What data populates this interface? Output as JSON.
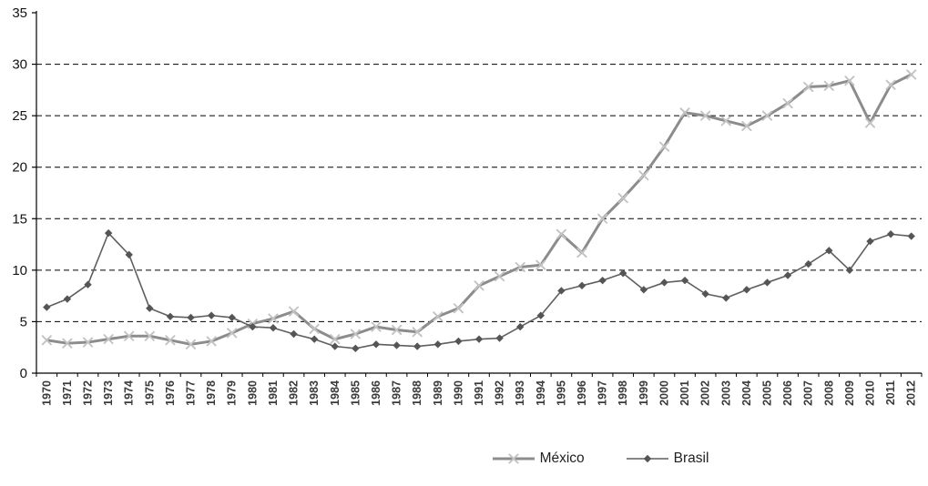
{
  "chart_data": {
    "type": "line",
    "title": "",
    "xlabel": "",
    "ylabel": "",
    "x": [
      1970,
      1971,
      1972,
      1973,
      1974,
      1975,
      1976,
      1977,
      1978,
      1979,
      1980,
      1981,
      1982,
      1983,
      1984,
      1985,
      1986,
      1987,
      1988,
      1989,
      1990,
      1991,
      1992,
      1993,
      1994,
      1995,
      1996,
      1997,
      1998,
      1999,
      2000,
      2001,
      2002,
      2003,
      2004,
      2005,
      2006,
      2007,
      2008,
      2009,
      2010,
      2011,
      2012
    ],
    "ylim": [
      0,
      35
    ],
    "ytick_step": 5,
    "yticks": [
      0,
      5,
      10,
      15,
      20,
      25,
      30,
      35
    ],
    "grid": "horizontal-dashed",
    "legend_position": "bottom-center",
    "colors": {
      "gridline": "#000000",
      "axis": "#000000",
      "background": "#ffffff"
    },
    "series": [
      {
        "name": "México",
        "marker": "x",
        "line_color": "#8c8c8c",
        "marker_color": "#c3c3c3",
        "line_width": 3,
        "values": [
          3.2,
          2.9,
          3.0,
          3.3,
          3.6,
          3.6,
          3.2,
          2.8,
          3.1,
          3.9,
          4.8,
          5.3,
          6.0,
          4.3,
          3.3,
          3.8,
          4.5,
          4.2,
          4.0,
          5.5,
          6.3,
          8.5,
          9.4,
          10.3,
          10.5,
          13.5,
          11.7,
          15.0,
          17.0,
          19.2,
          22.0,
          25.3,
          25.0,
          24.5,
          24.0,
          25.0,
          26.2,
          27.8,
          27.9,
          28.4,
          24.3,
          28.0,
          29.0
        ]
      },
      {
        "name": "Brasil",
        "marker": "diamond",
        "line_color": "#5f5f5f",
        "marker_color": "#555555",
        "line_width": 1.6,
        "values": [
          6.4,
          7.2,
          8.6,
          13.6,
          11.5,
          6.3,
          5.5,
          5.4,
          5.6,
          5.4,
          4.5,
          4.4,
          3.8,
          3.3,
          2.6,
          2.4,
          2.8,
          2.7,
          2.6,
          2.8,
          3.1,
          3.3,
          3.4,
          4.5,
          5.6,
          8.0,
          8.5,
          9.0,
          9.7,
          8.1,
          8.8,
          9.0,
          7.7,
          7.3,
          8.1,
          8.8,
          9.5,
          10.6,
          11.9,
          10.0,
          12.8,
          13.5,
          13.3
        ]
      }
    ]
  },
  "legend": {
    "items": [
      {
        "label": "México"
      },
      {
        "label": "Brasil"
      }
    ]
  }
}
